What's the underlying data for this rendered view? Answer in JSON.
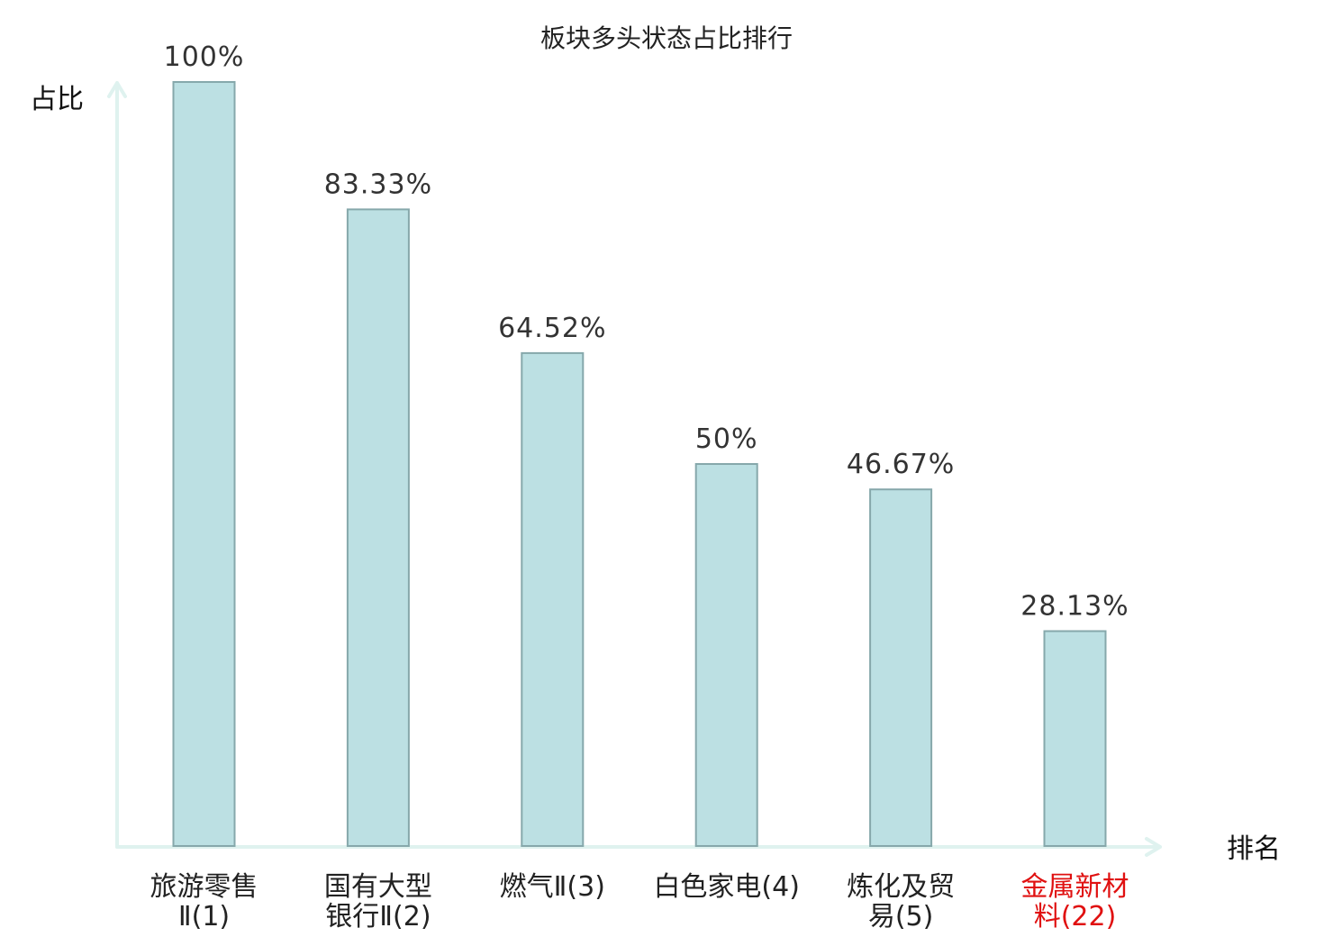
{
  "chart_data": {
    "type": "bar",
    "title": "板块多头状态占比排行",
    "ylabel": "占比",
    "xlabel": "排名",
    "ylim": [
      0,
      100
    ],
    "grid": false,
    "categories": [
      [
        "旅游零售",
        "Ⅱ(1)"
      ],
      [
        "国有大型",
        "银行Ⅱ(2)"
      ],
      [
        "燃气Ⅱ(3)"
      ],
      [
        "白色家电(4)"
      ],
      [
        "炼化及贸",
        "易(5)"
      ],
      [
        "金属新材",
        "料(22)"
      ]
    ],
    "values": [
      100,
      83.33,
      64.52,
      50,
      46.67,
      28.13
    ],
    "value_labels": [
      "100%",
      "83.33%",
      "64.52%",
      "50%",
      "46.67%",
      "28.13%"
    ],
    "highlight_index": 5,
    "colors": {
      "bar_fill": "#bce0e3",
      "bar_stroke": "#86a8ab",
      "axis": "#dff2ef",
      "highlight_text": "#e01010"
    }
  }
}
